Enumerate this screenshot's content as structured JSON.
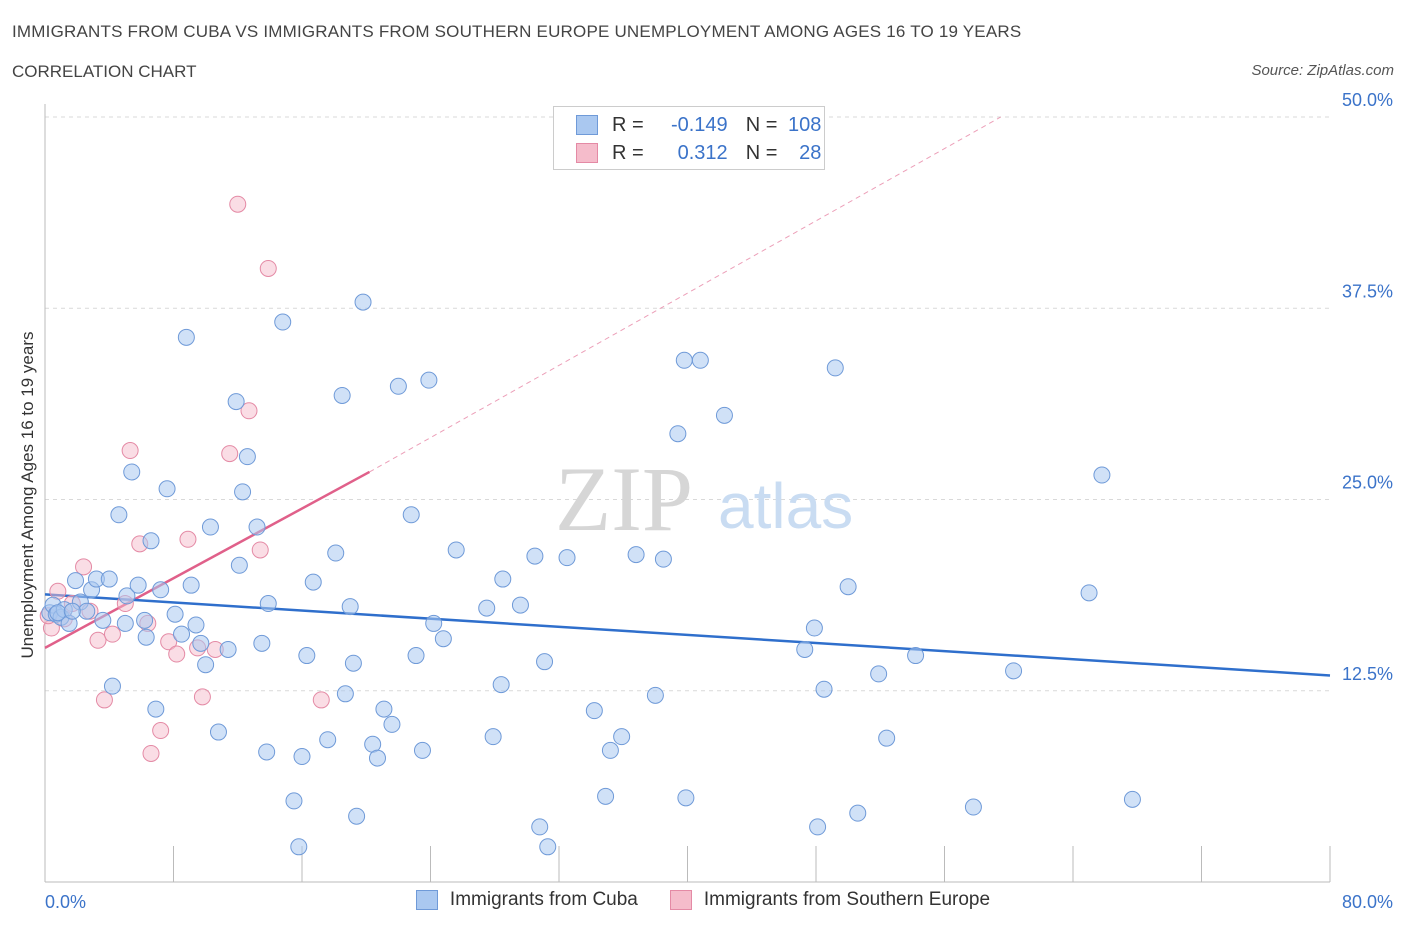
{
  "header": {
    "title": "IMMIGRANTS FROM CUBA VS IMMIGRANTS FROM SOUTHERN EUROPE UNEMPLOYMENT AMONG AGES 16 TO 19 YEARS",
    "subtitle": "CORRELATION CHART",
    "source": "Source: ZipAtlas.com"
  },
  "watermark": {
    "zip": "ZIP",
    "atlas": "atlas"
  },
  "legend": {
    "cuba": {
      "r_label": "R =",
      "r_value": "-0.149",
      "n_label": "N =",
      "n_value": "108"
    },
    "seurope": {
      "r_label": "R =",
      "r_value": "0.312",
      "n_label": "N =",
      "n_value": "28"
    }
  },
  "colors": {
    "cuba_fill": "#aac8f0",
    "cuba_stroke": "#6f9ad8",
    "cuba_line": "#2f6fcc",
    "seurope_fill": "#f5bccb",
    "seurope_stroke": "#e48aa5",
    "seurope_line": "#e0608a",
    "axis_text": "#3b73c9",
    "grid": "#d9d9d9"
  },
  "chart_data": {
    "type": "scatter",
    "title": "IMMIGRANTS FROM CUBA VS IMMIGRANTS FROM SOUTHERN EUROPE UNEMPLOYMENT AMONG AGES 16 TO 19 YEARS",
    "xlabel": "",
    "ylabel": "Unemployment Among Ages 16 to 19 years",
    "xlim": [
      0,
      80
    ],
    "ylim": [
      0,
      50
    ],
    "x_tick_labels": [
      "0.0%",
      "80.0%"
    ],
    "y_ticks": [
      12.5,
      25,
      37.5,
      50
    ],
    "y_tick_labels": [
      "12.5%",
      "25.0%",
      "37.5%",
      "50.0%"
    ],
    "series": [
      {
        "name": "Immigrants from Cuba",
        "r": -0.149,
        "n": 108,
        "trend": {
          "x": [
            0,
            80
          ],
          "y": [
            18.8,
            13.5
          ]
        },
        "points": [
          [
            0.3,
            17.6
          ],
          [
            0.5,
            18.1
          ],
          [
            0.7,
            17.5
          ],
          [
            1.0,
            17.3
          ],
          [
            1.2,
            17.8
          ],
          [
            1.5,
            16.9
          ],
          [
            1.9,
            19.7
          ],
          [
            2.2,
            18.3
          ],
          [
            2.6,
            17.7
          ],
          [
            2.9,
            19.1
          ],
          [
            3.2,
            19.8
          ],
          [
            3.6,
            17.1
          ],
          [
            4.0,
            19.8
          ],
          [
            4.2,
            12.8
          ],
          [
            4.6,
            24.0
          ],
          [
            5.0,
            16.9
          ],
          [
            5.1,
            18.7
          ],
          [
            5.4,
            26.8
          ],
          [
            5.8,
            19.4
          ],
          [
            6.2,
            17.1
          ],
          [
            6.3,
            16.0
          ],
          [
            6.6,
            22.3
          ],
          [
            6.9,
            11.3
          ],
          [
            7.2,
            19.1
          ],
          [
            7.6,
            25.7
          ],
          [
            8.1,
            17.5
          ],
          [
            8.5,
            16.2
          ],
          [
            8.8,
            35.6
          ],
          [
            9.1,
            19.4
          ],
          [
            9.4,
            16.8
          ],
          [
            9.7,
            15.6
          ],
          [
            10.0,
            14.2
          ],
          [
            10.3,
            23.2
          ],
          [
            10.8,
            9.8
          ],
          [
            11.4,
            15.2
          ],
          [
            11.9,
            31.4
          ],
          [
            12.1,
            20.7
          ],
          [
            12.3,
            25.5
          ],
          [
            12.6,
            27.8
          ],
          [
            13.2,
            23.2
          ],
          [
            13.5,
            15.6
          ],
          [
            13.8,
            8.5
          ],
          [
            13.9,
            18.2
          ],
          [
            14.8,
            36.6
          ],
          [
            15.5,
            5.3
          ],
          [
            15.8,
            2.3
          ],
          [
            16.0,
            8.2
          ],
          [
            16.3,
            14.8
          ],
          [
            16.7,
            19.6
          ],
          [
            17.6,
            9.3
          ],
          [
            18.1,
            21.5
          ],
          [
            18.5,
            31.8
          ],
          [
            18.7,
            12.3
          ],
          [
            19.0,
            18.0
          ],
          [
            19.2,
            14.3
          ],
          [
            19.4,
            4.3
          ],
          [
            19.8,
            37.9
          ],
          [
            20.4,
            9.0
          ],
          [
            20.7,
            8.1
          ],
          [
            21.1,
            11.3
          ],
          [
            21.6,
            10.3
          ],
          [
            22.0,
            32.4
          ],
          [
            22.8,
            24.0
          ],
          [
            23.1,
            14.8
          ],
          [
            23.5,
            8.6
          ],
          [
            23.9,
            32.8
          ],
          [
            24.2,
            16.9
          ],
          [
            24.8,
            15.9
          ],
          [
            25.6,
            21.7
          ],
          [
            27.5,
            17.9
          ],
          [
            27.9,
            9.5
          ],
          [
            28.4,
            12.9
          ],
          [
            28.5,
            19.8
          ],
          [
            29.6,
            18.1
          ],
          [
            30.5,
            21.3
          ],
          [
            30.8,
            3.6
          ],
          [
            31.1,
            14.4
          ],
          [
            31.3,
            2.3
          ],
          [
            32.5,
            21.2
          ],
          [
            34.2,
            11.2
          ],
          [
            34.9,
            5.6
          ],
          [
            35.2,
            8.6
          ],
          [
            35.9,
            9.5
          ],
          [
            36.8,
            21.4
          ],
          [
            38.0,
            12.2
          ],
          [
            38.5,
            21.1
          ],
          [
            39.4,
            29.3
          ],
          [
            39.8,
            34.1
          ],
          [
            39.9,
            5.5
          ],
          [
            40.8,
            34.1
          ],
          [
            42.3,
            30.5
          ],
          [
            47.3,
            15.2
          ],
          [
            47.9,
            16.6
          ],
          [
            48.1,
            3.6
          ],
          [
            48.5,
            12.6
          ],
          [
            49.2,
            33.6
          ],
          [
            50.0,
            19.3
          ],
          [
            50.6,
            4.5
          ],
          [
            51.9,
            13.6
          ],
          [
            52.4,
            9.4
          ],
          [
            54.2,
            14.8
          ],
          [
            57.8,
            4.9
          ],
          [
            60.3,
            13.8
          ],
          [
            65.0,
            18.9
          ],
          [
            65.8,
            26.6
          ],
          [
            67.7,
            5.4
          ],
          [
            0.8,
            17.6
          ],
          [
            1.7,
            17.7
          ]
        ]
      },
      {
        "name": "Immigrants from Southern Europe",
        "r": 0.312,
        "n": 28,
        "trend": {
          "x": [
            0,
            20.2
          ],
          "y": [
            15.3,
            26.8
          ]
        },
        "trend_extension": {
          "x": [
            20.2,
            59.5
          ],
          "y": [
            26.8,
            50
          ]
        },
        "points": [
          [
            0.4,
            16.6
          ],
          [
            0.8,
            19.0
          ],
          [
            1.2,
            17.2
          ],
          [
            1.7,
            18.2
          ],
          [
            2.4,
            20.6
          ],
          [
            2.8,
            17.7
          ],
          [
            3.3,
            15.8
          ],
          [
            3.7,
            11.9
          ],
          [
            4.2,
            16.2
          ],
          [
            5.0,
            18.2
          ],
          [
            5.3,
            28.2
          ],
          [
            5.9,
            22.1
          ],
          [
            6.4,
            16.9
          ],
          [
            6.6,
            8.4
          ],
          [
            7.2,
            9.9
          ],
          [
            7.7,
            15.7
          ],
          [
            8.2,
            14.9
          ],
          [
            8.9,
            22.4
          ],
          [
            9.5,
            15.3
          ],
          [
            9.8,
            12.1
          ],
          [
            10.6,
            15.2
          ],
          [
            11.5,
            28.0
          ],
          [
            12.0,
            44.3
          ],
          [
            12.7,
            30.8
          ],
          [
            13.4,
            21.7
          ],
          [
            13.9,
            40.1
          ],
          [
            17.2,
            11.9
          ],
          [
            0.2,
            17.4
          ]
        ]
      }
    ]
  },
  "bottom_legend": {
    "cuba_label": "Immigrants from Cuba",
    "seurope_label": "Immigrants from Southern Europe"
  }
}
